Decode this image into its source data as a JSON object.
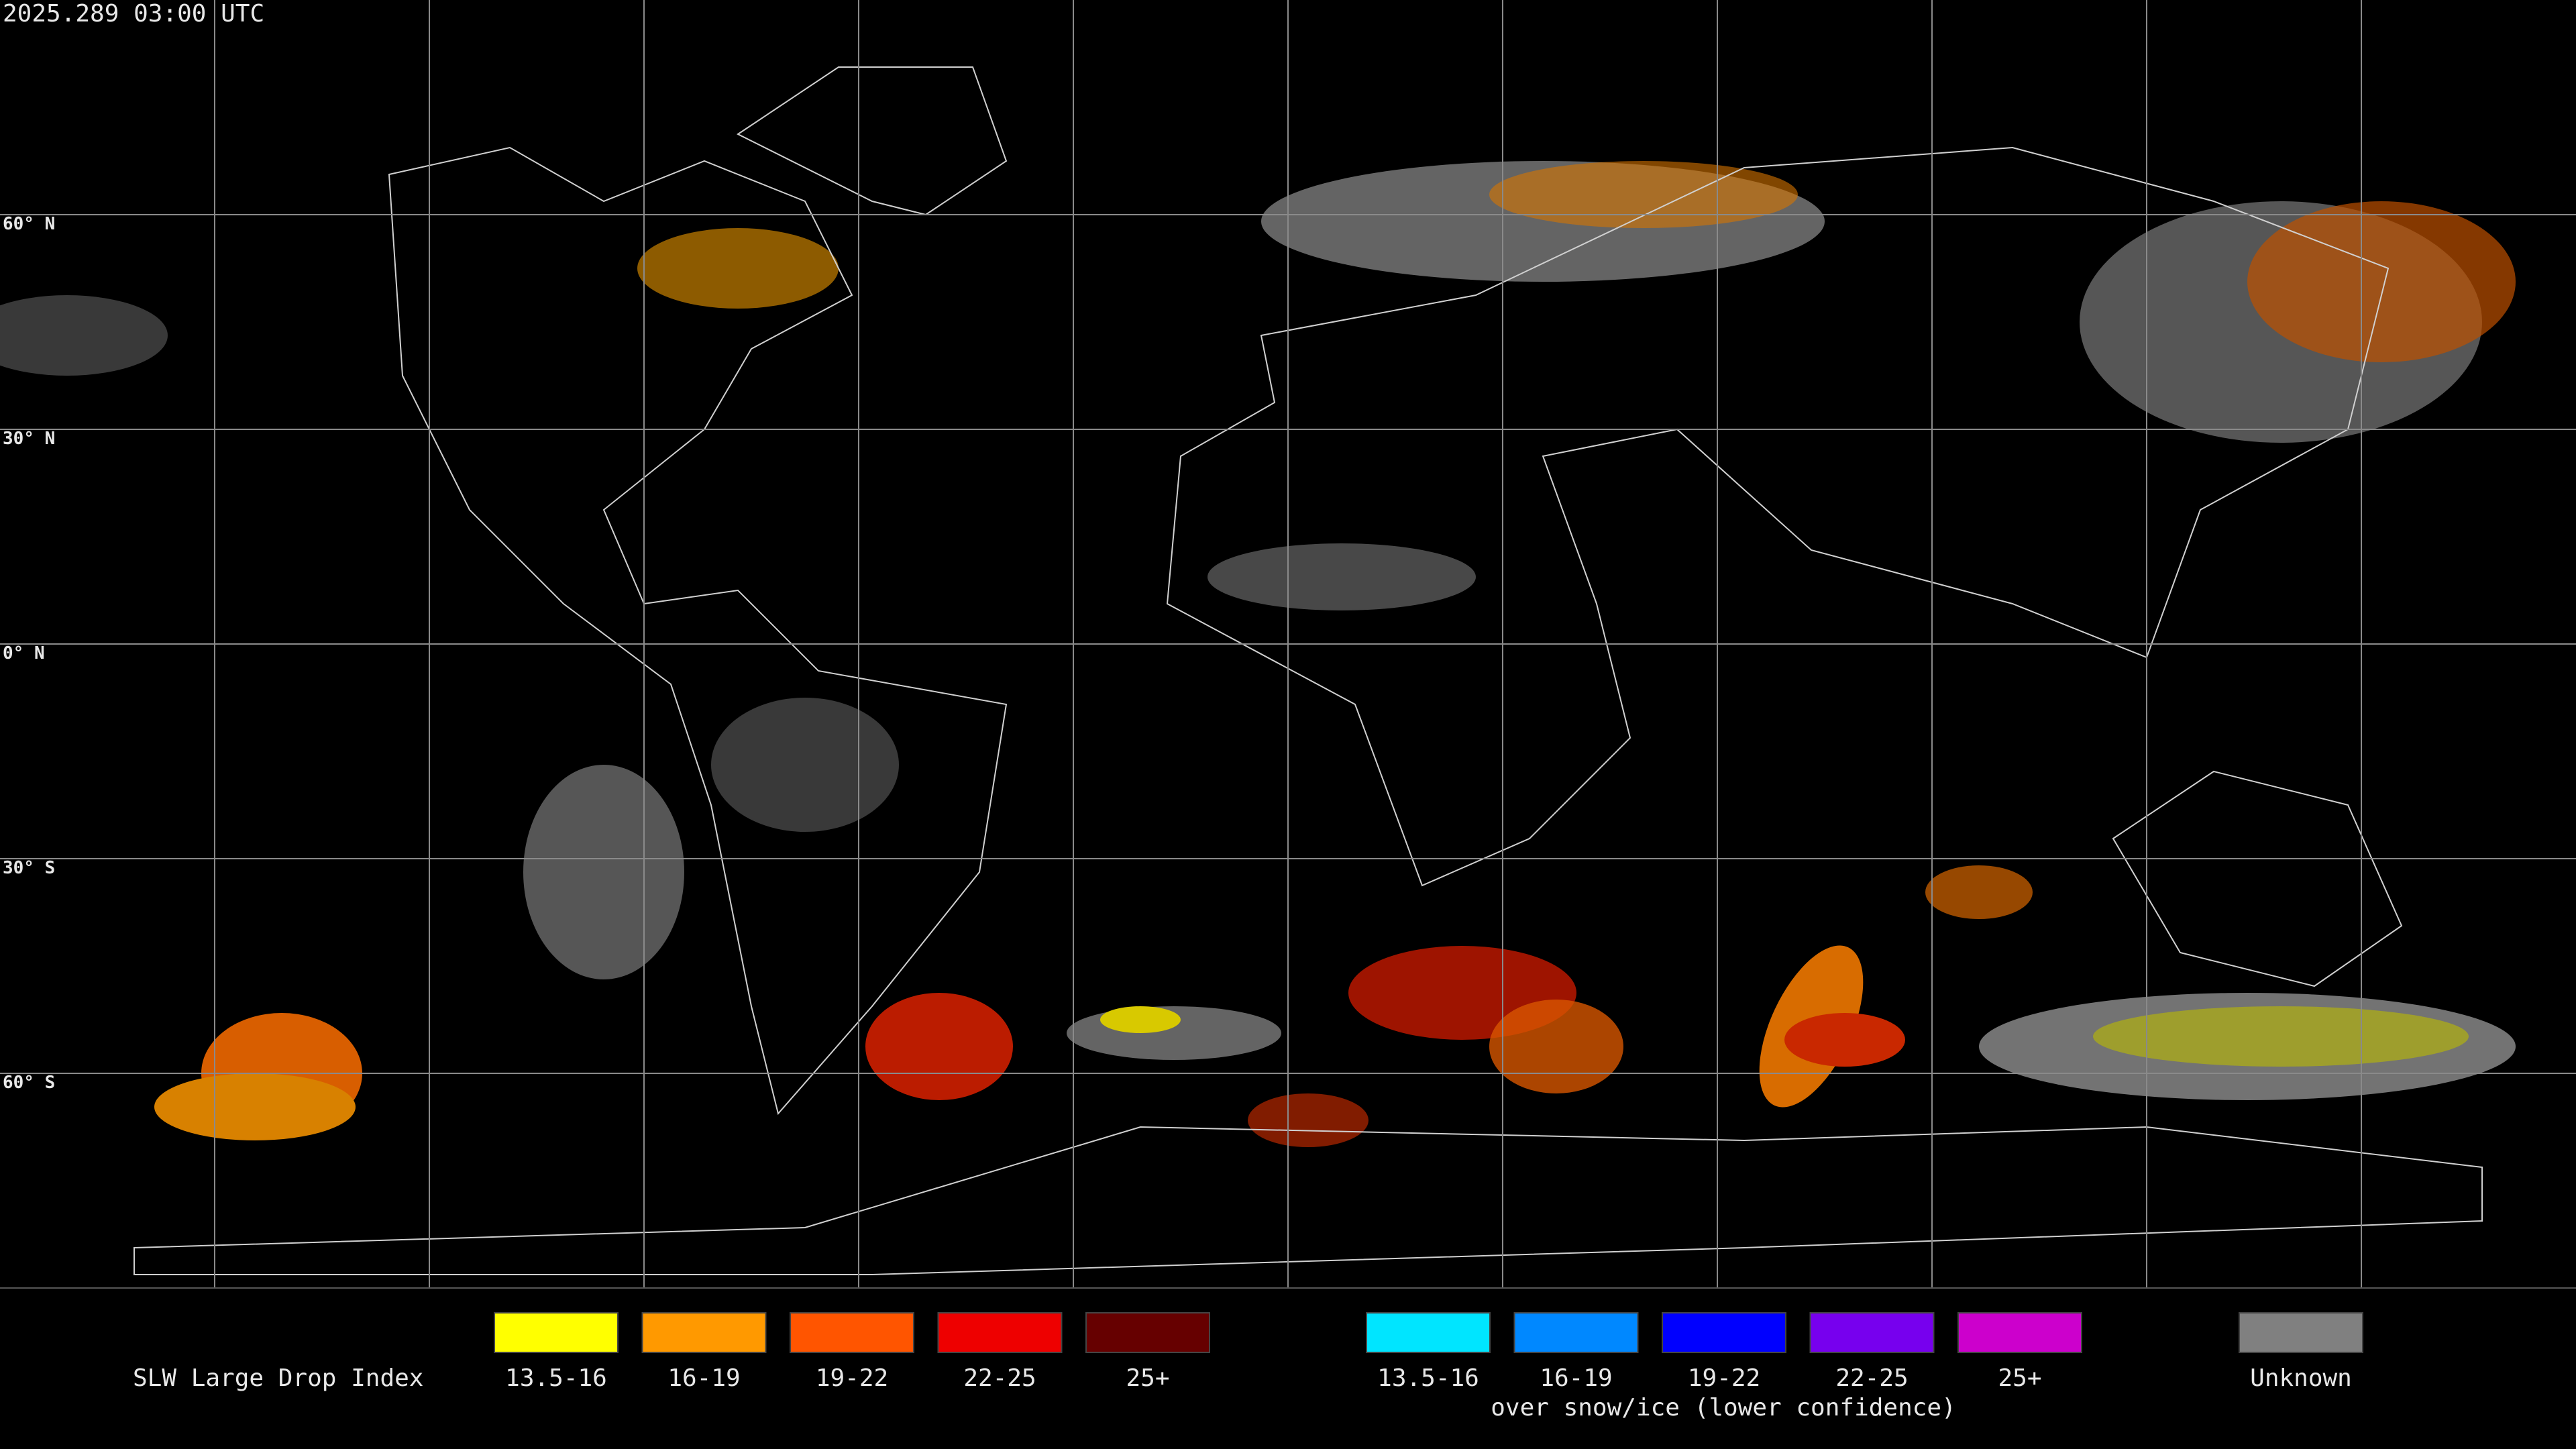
{
  "header": {
    "title": "2025.289 03:00 UTC"
  },
  "map": {
    "latitude_labels": [
      "60° N",
      "30° N",
      "0° N",
      "30° S",
      "60° S"
    ]
  },
  "legend": {
    "title": "SLW Large Drop Index",
    "groups": [
      {
        "items": [
          {
            "label": "13.5-16",
            "color": "#ffff00"
          },
          {
            "label": "16-19",
            "color": "#ff9900"
          },
          {
            "label": "19-22",
            "color": "#ff5500"
          },
          {
            "label": "22-25",
            "color": "#ee0000"
          },
          {
            "label": "25+",
            "color": "#660000"
          }
        ]
      },
      {
        "items": [
          {
            "label": "13.5-16",
            "color": "#00e5ff"
          },
          {
            "label": "16-19",
            "color": "#0088ff"
          },
          {
            "label": "19-22",
            "color": "#0000ff"
          },
          {
            "label": "22-25",
            "color": "#7700ee"
          },
          {
            "label": "25+",
            "color": "#cc00cc"
          }
        ],
        "caption": "over snow/ice (lower confidence)"
      }
    ],
    "unknown": {
      "label": "Unknown",
      "color": "#808080"
    }
  }
}
